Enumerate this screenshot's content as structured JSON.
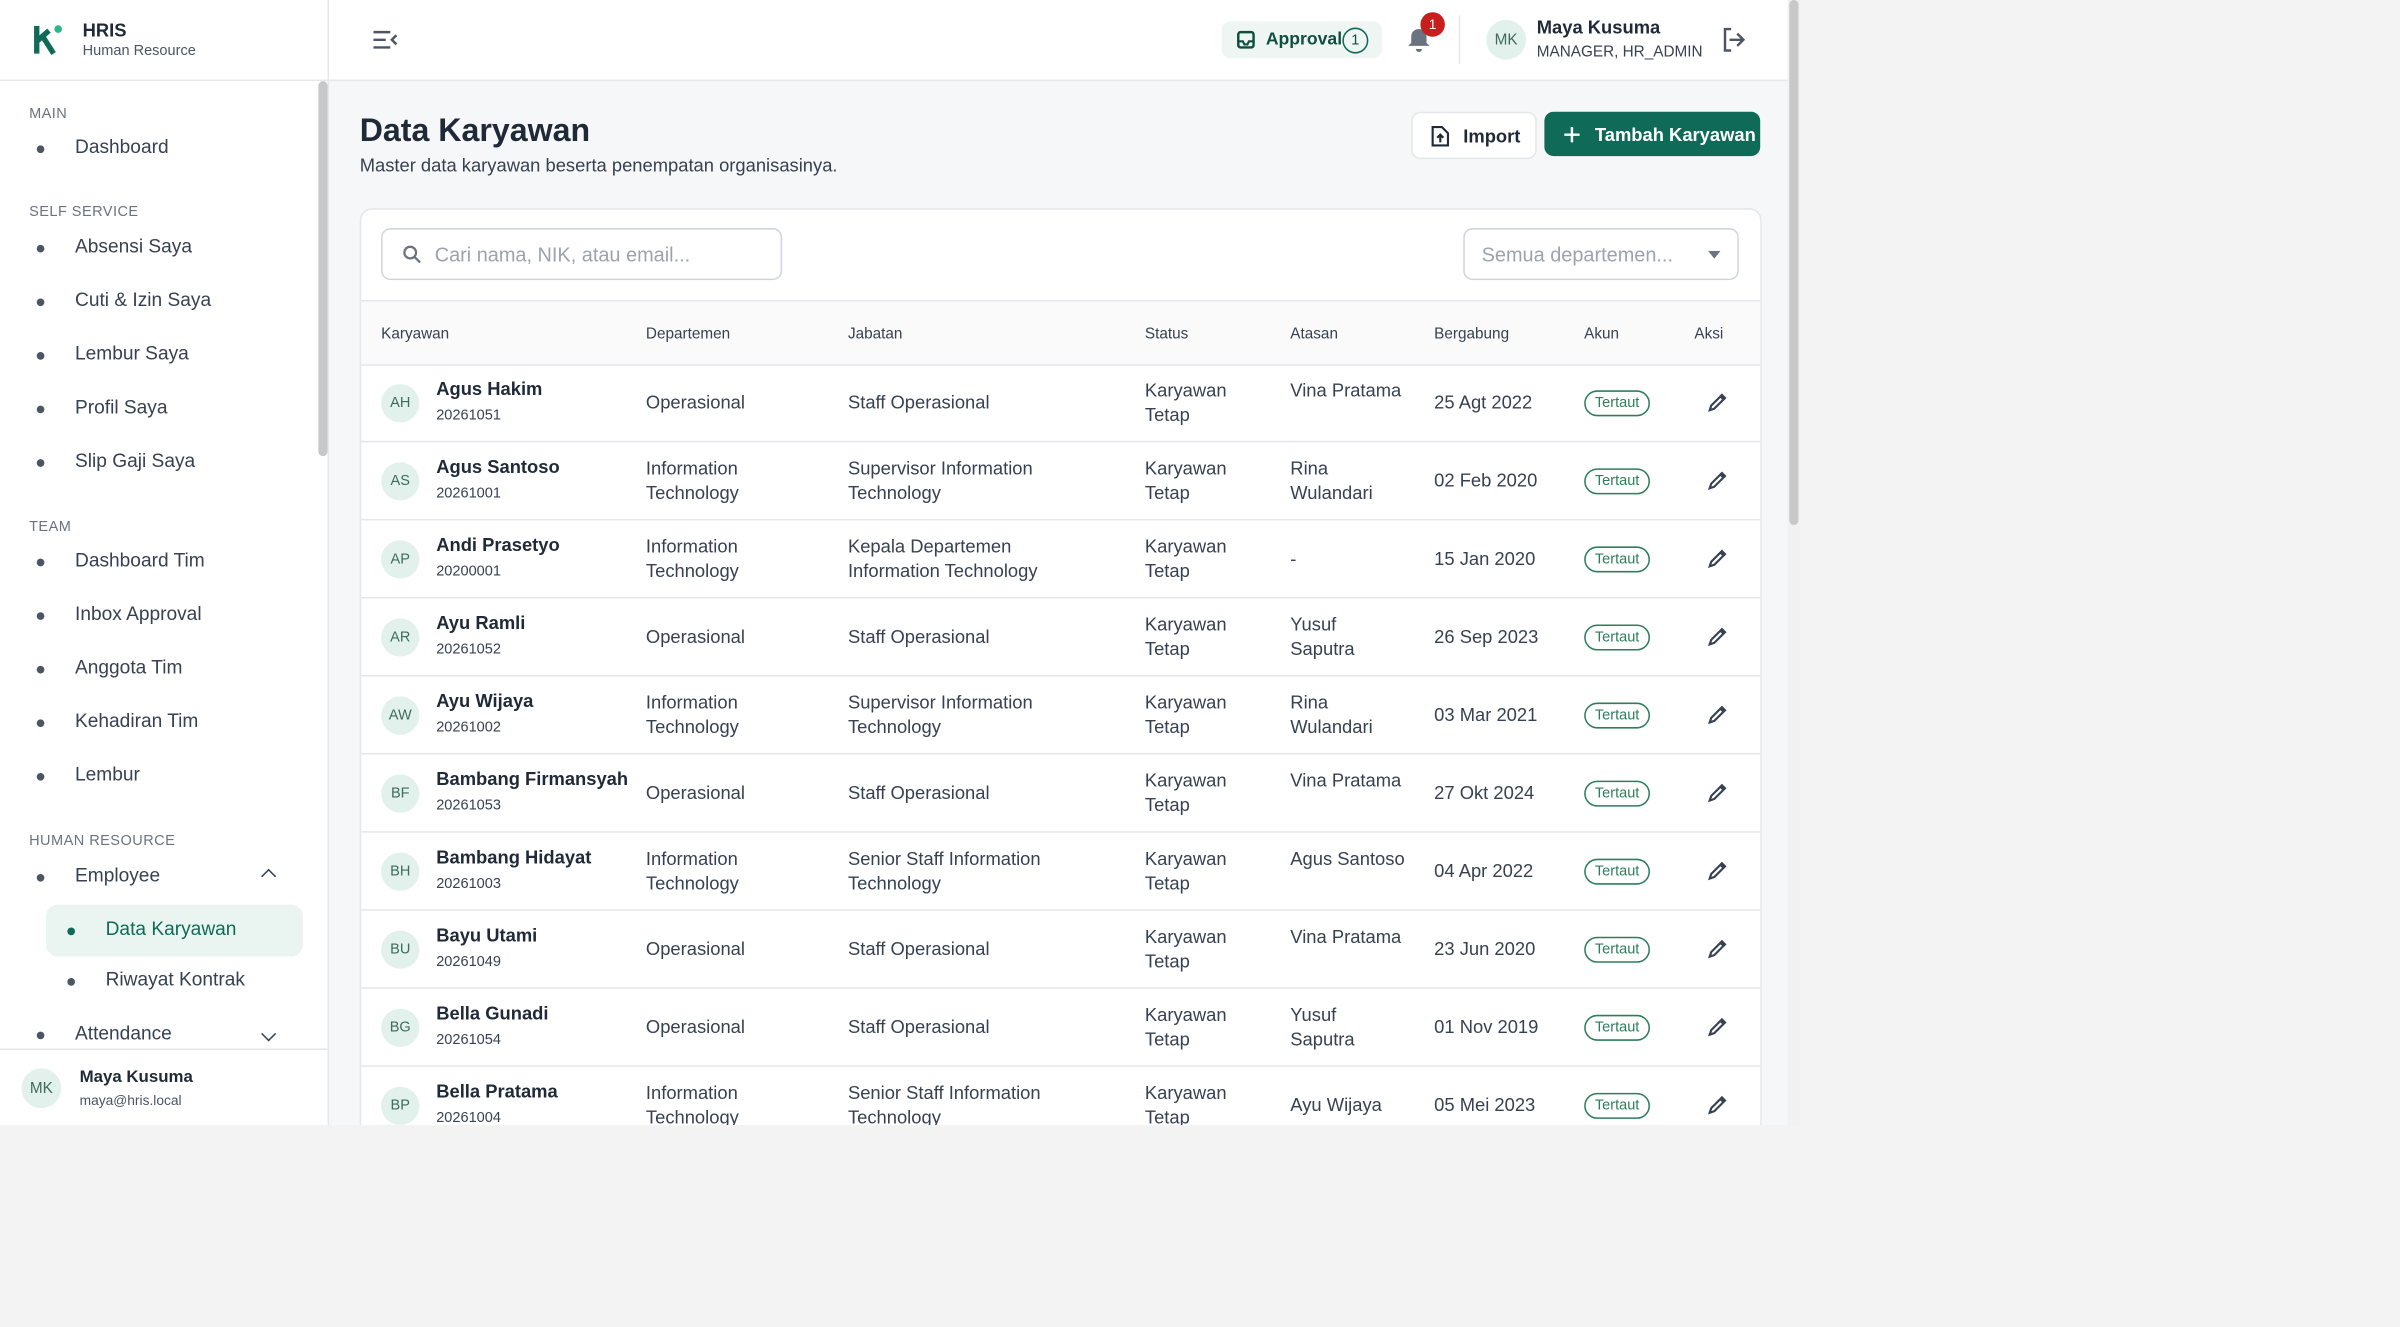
{
  "brand": {
    "title": "HRIS",
    "subtitle": "Human Resource"
  },
  "sidebar": {
    "sections": [
      {
        "label": "MAIN",
        "items": [
          "Dashboard"
        ]
      },
      {
        "label": "SELF SERVICE",
        "items": [
          "Absensi Saya",
          "Cuti & Izin Saya",
          "Lembur Saya",
          "Profil Saya",
          "Slip Gaji Saya"
        ]
      },
      {
        "label": "TEAM",
        "items": [
          "Dashboard Tim",
          "Inbox Approval",
          "Anggota Tim",
          "Kehadiran Tim",
          "Lembur"
        ]
      },
      {
        "label": "HUMAN RESOURCE",
        "items": [
          "Employee",
          "Data Karyawan",
          "Riwayat Kontrak",
          "Attendance"
        ]
      }
    ],
    "user": {
      "initials": "MK",
      "name": "Maya Kusuma",
      "email": "maya@hris.local"
    }
  },
  "topbar": {
    "approval": "Approval",
    "approval_count": "1",
    "notifications": "1",
    "initials": "MK",
    "name": "Maya Kusuma",
    "role": "MANAGER, HR_ADMIN"
  },
  "header": {
    "title": "Data Karyawan",
    "subtitle": "Master data karyawan beserta penempatan organisasinya.",
    "import": "Import",
    "add": "Tambah Karyawan"
  },
  "filters": {
    "search": "Cari nama, NIK, atau email...",
    "department": "Semua departemen..."
  },
  "table": {
    "columns": [
      "Karyawan",
      "Departemen",
      "Jabatan",
      "Status",
      "Atasan",
      "Bergabung",
      "Akun",
      "Aksi"
    ],
    "rows": [
      [
        "AH",
        "Agus Hakim",
        "20261051",
        "Operasional",
        "Staff Operasional",
        "Karyawan Tetap",
        "Vina Pratama",
        "25 Agt 2022",
        "Tertaut"
      ],
      [
        "AS",
        "Agus Santoso",
        "20261001",
        "Information Technology",
        "Supervisor Information Technology",
        "Karyawan Tetap",
        "Rina Wulandari",
        "02 Feb 2020",
        "Tertaut"
      ],
      [
        "AP",
        "Andi Prasetyo",
        "20200001",
        "Information Technology",
        "Kepala Departemen Information Technology",
        "Karyawan Tetap",
        "-",
        "15 Jan 2020",
        "Tertaut"
      ],
      [
        "AR",
        "Ayu Ramli",
        "20261052",
        "Operasional",
        "Staff Operasional",
        "Karyawan Tetap",
        "Yusuf Saputra",
        "26 Sep 2023",
        "Tertaut"
      ],
      [
        "AW",
        "Ayu Wijaya",
        "20261002",
        "Information Technology",
        "Supervisor Information Technology",
        "Karyawan Tetap",
        "Rina Wulandari",
        "03 Mar 2021",
        "Tertaut"
      ],
      [
        "BF",
        "Bambang Firmansyah",
        "20261053",
        "Operasional",
        "Staff Operasional",
        "Karyawan Tetap",
        "Vina Pratama",
        "27 Okt 2024",
        "Tertaut"
      ],
      [
        "BH",
        "Bambang Hidayat",
        "20261003",
        "Information Technology",
        "Senior Staff Information Technology",
        "Karyawan Tetap",
        "Agus Santoso",
        "04 Apr 2022",
        "Tertaut"
      ],
      [
        "BU",
        "Bayu Utami",
        "20261049",
        "Operasional",
        "Staff Operasional",
        "Karyawan Tetap",
        "Vina Pratama",
        "23 Jun 2020",
        "Tertaut"
      ],
      [
        "BG",
        "Bella Gunadi",
        "20261054",
        "Operasional",
        "Staff Operasional",
        "Karyawan Tetap",
        "Yusuf Saputra",
        "01 Nov 2019",
        "Tertaut"
      ],
      [
        "BP",
        "Bella Pratama",
        "20261004",
        "Information Technology",
        "Senior Staff Information Technology",
        "Karyawan Tetap",
        "Ayu Wijaya",
        "05 Mei 2023",
        "Tertaut"
      ]
    ]
  }
}
